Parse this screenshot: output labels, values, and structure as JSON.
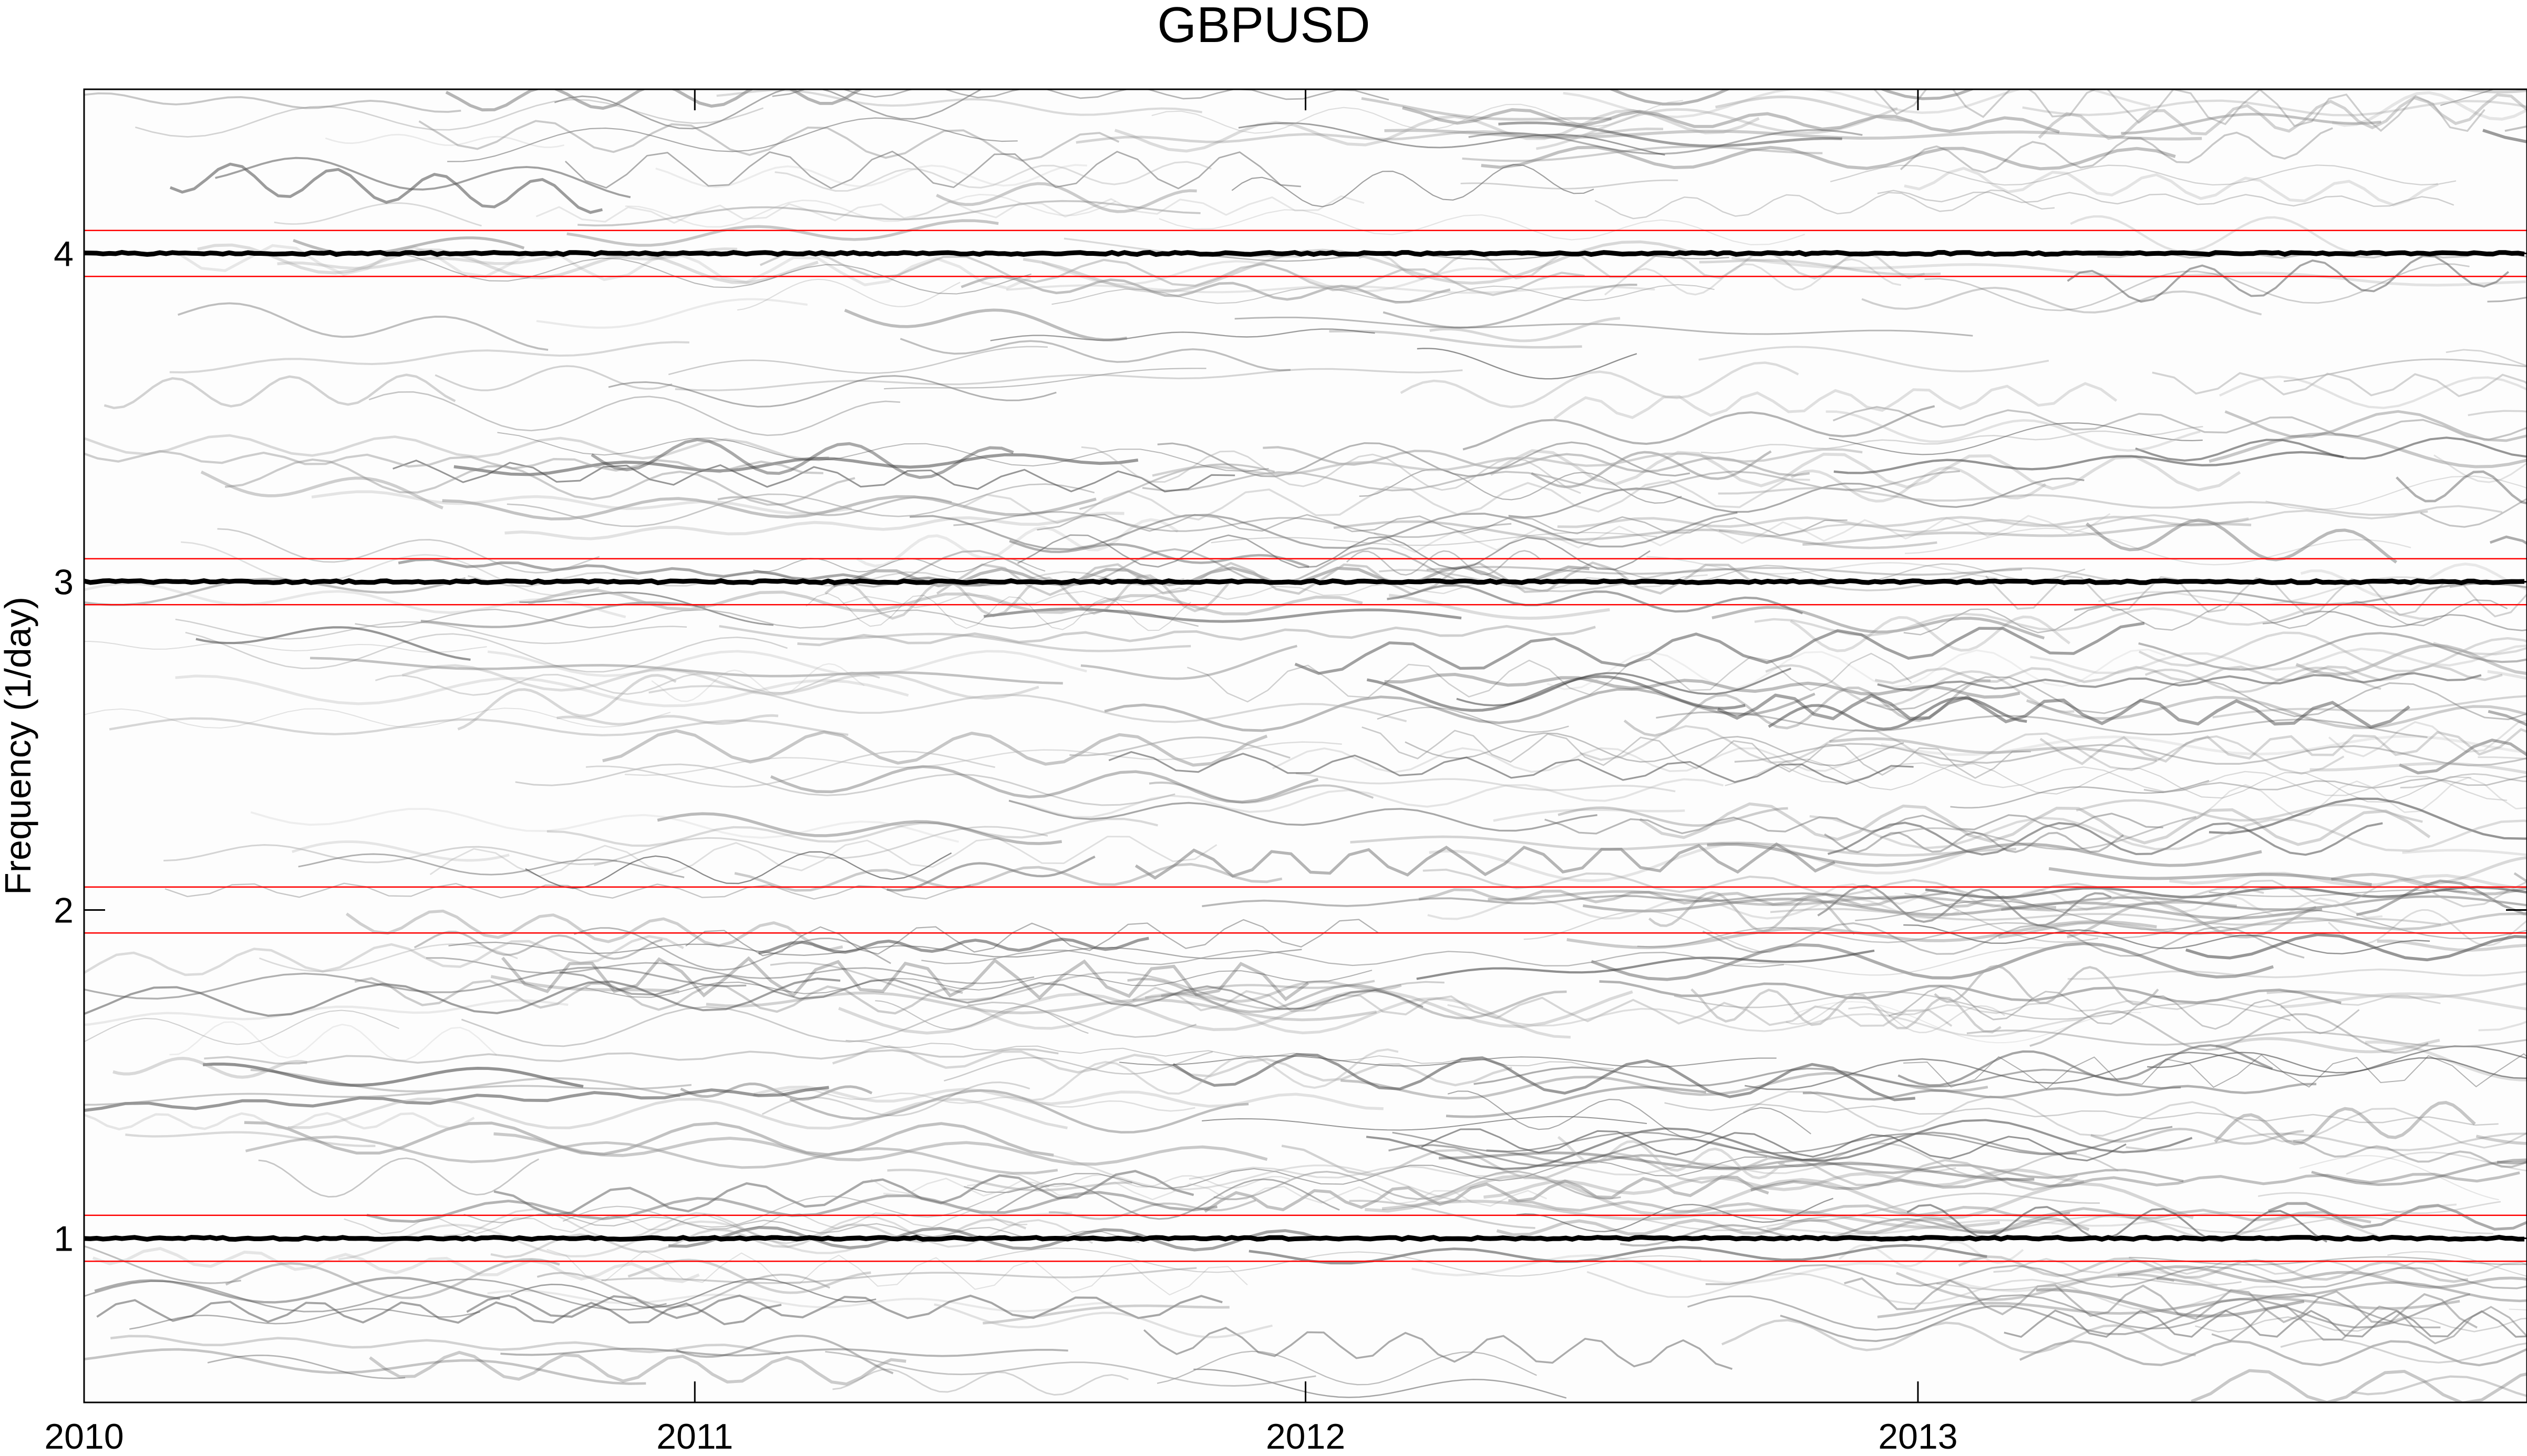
{
  "chart_data": {
    "type": "heatmap",
    "title": "GBPUSD",
    "xlabel": "",
    "ylabel": "Frequency (1/day)",
    "x_range": [
      "2010-01-01",
      "2013-12-31"
    ],
    "ylim": [
      0.5,
      4.5
    ],
    "x_ticks": [
      "2010",
      "2011",
      "2012",
      "2013"
    ],
    "y_ticks": [
      1,
      2,
      3,
      4
    ],
    "colormap": [
      "#ffffff",
      "#000000"
    ],
    "band_color": "#ff0000",
    "grid": false,
    "dominant_lines": [
      {
        "frequency": 1.0
      },
      {
        "frequency": 3.0
      },
      {
        "frequency": 4.0
      }
    ],
    "reference_bands": [
      {
        "low": 0.93,
        "high": 1.07
      },
      {
        "low": 1.93,
        "high": 2.07
      },
      {
        "low": 2.93,
        "high": 3.07
      },
      {
        "low": 3.93,
        "high": 4.07
      }
    ]
  }
}
